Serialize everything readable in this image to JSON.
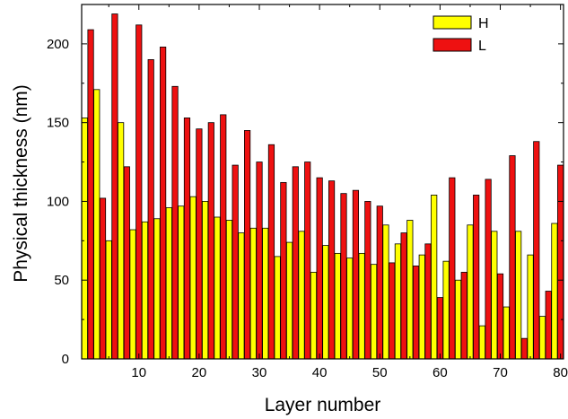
{
  "chart_data": {
    "type": "bar",
    "xlabel": "Layer number",
    "ylabel": "Physical thickness (nm)",
    "xlim": [
      0.5,
      80.5
    ],
    "ylim": [
      0,
      225
    ],
    "x_ticks": [
      10,
      20,
      30,
      40,
      50,
      60,
      70,
      80
    ],
    "y_ticks": [
      0,
      50,
      100,
      150,
      200
    ],
    "grid": false,
    "legend_position": "top-right",
    "series": [
      {
        "name": "H",
        "color": "#ffff00",
        "x": [
          1,
          3,
          5,
          7,
          9,
          11,
          13,
          15,
          17,
          19,
          21,
          23,
          25,
          27,
          29,
          31,
          33,
          35,
          37,
          39,
          41,
          43,
          45,
          47,
          49,
          51,
          53,
          55,
          57,
          59,
          61,
          63,
          65,
          67,
          69,
          71,
          73,
          75,
          77,
          79
        ],
        "values": [
          153,
          171,
          75,
          150,
          82,
          87,
          89,
          96,
          97,
          103,
          100,
          90,
          88,
          80,
          83,
          83,
          65,
          74,
          81,
          55,
          72,
          67,
          64,
          67,
          60,
          85,
          73,
          88,
          66,
          104,
          62,
          50,
          85,
          21,
          81,
          33,
          81,
          66,
          27,
          86
        ]
      },
      {
        "name": "L",
        "color": "#ee1111",
        "x": [
          2,
          4,
          6,
          8,
          10,
          12,
          14,
          16,
          18,
          20,
          22,
          24,
          26,
          28,
          30,
          32,
          34,
          36,
          38,
          40,
          42,
          44,
          46,
          48,
          50,
          52,
          54,
          56,
          58,
          60,
          62,
          64,
          66,
          68,
          70,
          72,
          74,
          76,
          78,
          80
        ],
        "values": [
          209,
          102,
          219,
          122,
          212,
          190,
          198,
          173,
          153,
          146,
          150,
          155,
          123,
          145,
          125,
          136,
          112,
          122,
          125,
          115,
          113,
          105,
          107,
          100,
          97,
          61,
          80,
          59,
          73,
          39,
          115,
          55,
          104,
          114,
          54,
          129,
          13,
          138,
          43,
          123
        ]
      }
    ]
  }
}
